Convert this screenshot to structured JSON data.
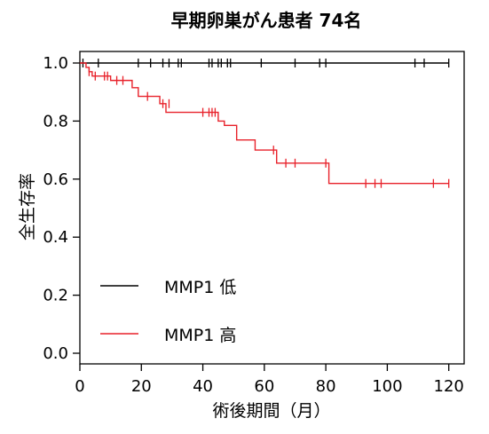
{
  "chart_data": {
    "type": "line",
    "title": "早期卵巣がん患者  74名",
    "xlabel": "術後期間（月）",
    "ylabel": "全生存率",
    "xlim": [
      0,
      125
    ],
    "ylim": [
      0,
      1.0
    ],
    "xticks": [
      0,
      20,
      40,
      60,
      80,
      100,
      120
    ],
    "yticks": [
      0.0,
      0.2,
      0.4,
      0.6,
      0.8,
      1.0
    ],
    "xtick_labels": [
      "0",
      "20",
      "40",
      "60",
      "80",
      "100",
      "120"
    ],
    "ytick_labels": [
      "0.0",
      "0.2",
      "0.4",
      "0.6",
      "0.8",
      "1.0"
    ],
    "grid": false,
    "legend_position": "lower-left",
    "series": [
      {
        "name": "MMP1 低",
        "color": "#000000",
        "steps": [
          [
            0,
            1.0
          ],
          [
            120,
            1.0
          ]
        ],
        "censored": [
          [
            1,
            1.0
          ],
          [
            6,
            1.0
          ],
          [
            19,
            1.0
          ],
          [
            23,
            1.0
          ],
          [
            27,
            1.0
          ],
          [
            29,
            1.0
          ],
          [
            32,
            1.0
          ],
          [
            33,
            1.0
          ],
          [
            42,
            1.0
          ],
          [
            43,
            1.0
          ],
          [
            45,
            1.0
          ],
          [
            46,
            1.0
          ],
          [
            48,
            1.0
          ],
          [
            49,
            1.0
          ],
          [
            59,
            1.0
          ],
          [
            70,
            1.0
          ],
          [
            78,
            1.0
          ],
          [
            80,
            1.0
          ],
          [
            109,
            1.0
          ],
          [
            112,
            1.0
          ],
          [
            120,
            1.0
          ]
        ]
      },
      {
        "name": "MMP1 高",
        "color": "#e8212a",
        "steps": [
          [
            0,
            1.0
          ],
          [
            2,
            1.0
          ],
          [
            2,
            0.985
          ],
          [
            3,
            0.985
          ],
          [
            3,
            0.97
          ],
          [
            4,
            0.97
          ],
          [
            4,
            0.955
          ],
          [
            10,
            0.955
          ],
          [
            10,
            0.94
          ],
          [
            17,
            0.94
          ],
          [
            17,
            0.915
          ],
          [
            19,
            0.915
          ],
          [
            19,
            0.885
          ],
          [
            26,
            0.885
          ],
          [
            26,
            0.86
          ],
          [
            28,
            0.86
          ],
          [
            28,
            0.83
          ],
          [
            45,
            0.83
          ],
          [
            45,
            0.8
          ],
          [
            47,
            0.8
          ],
          [
            47,
            0.785
          ],
          [
            51,
            0.785
          ],
          [
            51,
            0.735
          ],
          [
            57,
            0.735
          ],
          [
            57,
            0.7
          ],
          [
            64,
            0.7
          ],
          [
            64,
            0.655
          ],
          [
            81,
            0.655
          ],
          [
            81,
            0.585
          ],
          [
            120,
            0.585
          ]
        ],
        "censored": [
          [
            3,
            0.97
          ],
          [
            5,
            0.955
          ],
          [
            8,
            0.955
          ],
          [
            9,
            0.955
          ],
          [
            12,
            0.94
          ],
          [
            14,
            0.94
          ],
          [
            22,
            0.885
          ],
          [
            27,
            0.86
          ],
          [
            29,
            0.86
          ],
          [
            40,
            0.83
          ],
          [
            42,
            0.83
          ],
          [
            43,
            0.83
          ],
          [
            44,
            0.83
          ],
          [
            63,
            0.7
          ],
          [
            67,
            0.655
          ],
          [
            70,
            0.655
          ],
          [
            80,
            0.655
          ],
          [
            93,
            0.585
          ],
          [
            96,
            0.585
          ],
          [
            98,
            0.585
          ],
          [
            115,
            0.585
          ],
          [
            120,
            0.585
          ]
        ]
      }
    ]
  }
}
